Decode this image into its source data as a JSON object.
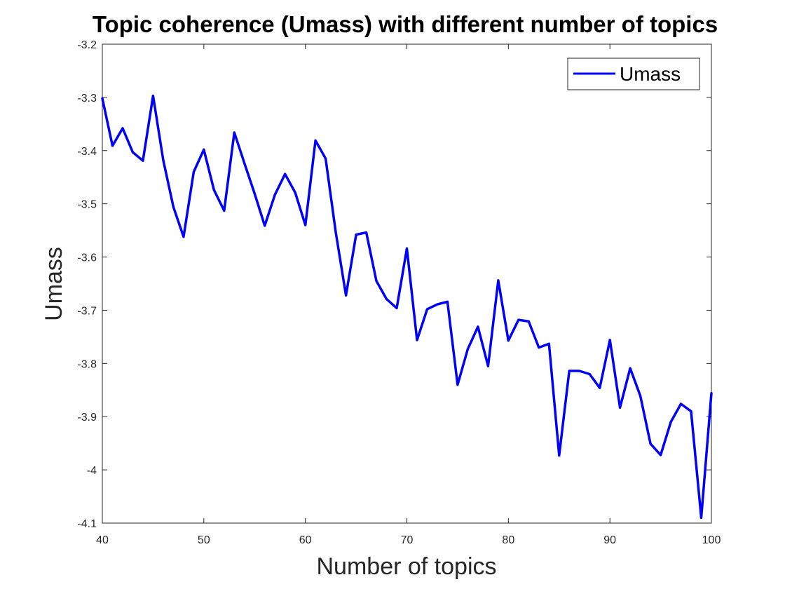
{
  "chart_data": {
    "type": "line",
    "title": "Topic coherence (Umass) with different number of topics",
    "xlabel": "Number of topics",
    "ylabel": "Umass",
    "xlim": [
      40,
      100
    ],
    "ylim": [
      -4.1,
      -3.2
    ],
    "xticks": [
      "40",
      "50",
      "60",
      "70",
      "80",
      "90",
      "100"
    ],
    "yticks": [
      "-3.2",
      "-3.3",
      "-3.4",
      "-3.5",
      "-3.6",
      "-3.7",
      "-3.8",
      "-3.9",
      "-4",
      "-4.1"
    ],
    "grid": false,
    "legend_position": "top-right",
    "series": [
      {
        "name": "Umass",
        "color": "#0000ff",
        "x": [
          40,
          41,
          42,
          43,
          44,
          45,
          46,
          47,
          48,
          49,
          50,
          51,
          52,
          53,
          54,
          55,
          56,
          57,
          58,
          59,
          60,
          61,
          62,
          63,
          64,
          65,
          66,
          67,
          68,
          69,
          70,
          71,
          72,
          73,
          74,
          75,
          76,
          77,
          78,
          79,
          80,
          81,
          82,
          83,
          84,
          85,
          86,
          87,
          88,
          89,
          90,
          91,
          92,
          93,
          94,
          95,
          96,
          97,
          98,
          99,
          100
        ],
        "values": [
          -3.302,
          -3.391,
          -3.358,
          -3.403,
          -3.419,
          -3.297,
          -3.418,
          -3.506,
          -3.562,
          -3.44,
          -3.398,
          -3.474,
          -3.513,
          -3.366,
          -3.424,
          -3.481,
          -3.541,
          -3.483,
          -3.444,
          -3.479,
          -3.54,
          -3.381,
          -3.415,
          -3.554,
          -3.672,
          -3.558,
          -3.554,
          -3.645,
          -3.679,
          -3.696,
          -3.584,
          -3.756,
          -3.698,
          -3.689,
          -3.684,
          -3.84,
          -3.773,
          -3.731,
          -3.805,
          -3.644,
          -3.757,
          -3.718,
          -3.721,
          -3.77,
          -3.763,
          -3.973,
          -3.814,
          -3.814,
          -3.82,
          -3.846,
          -3.756,
          -3.883,
          -3.809,
          -3.861,
          -3.951,
          -3.972,
          -3.91,
          -3.876,
          -3.89,
          -4.09,
          -3.856
        ]
      }
    ]
  }
}
